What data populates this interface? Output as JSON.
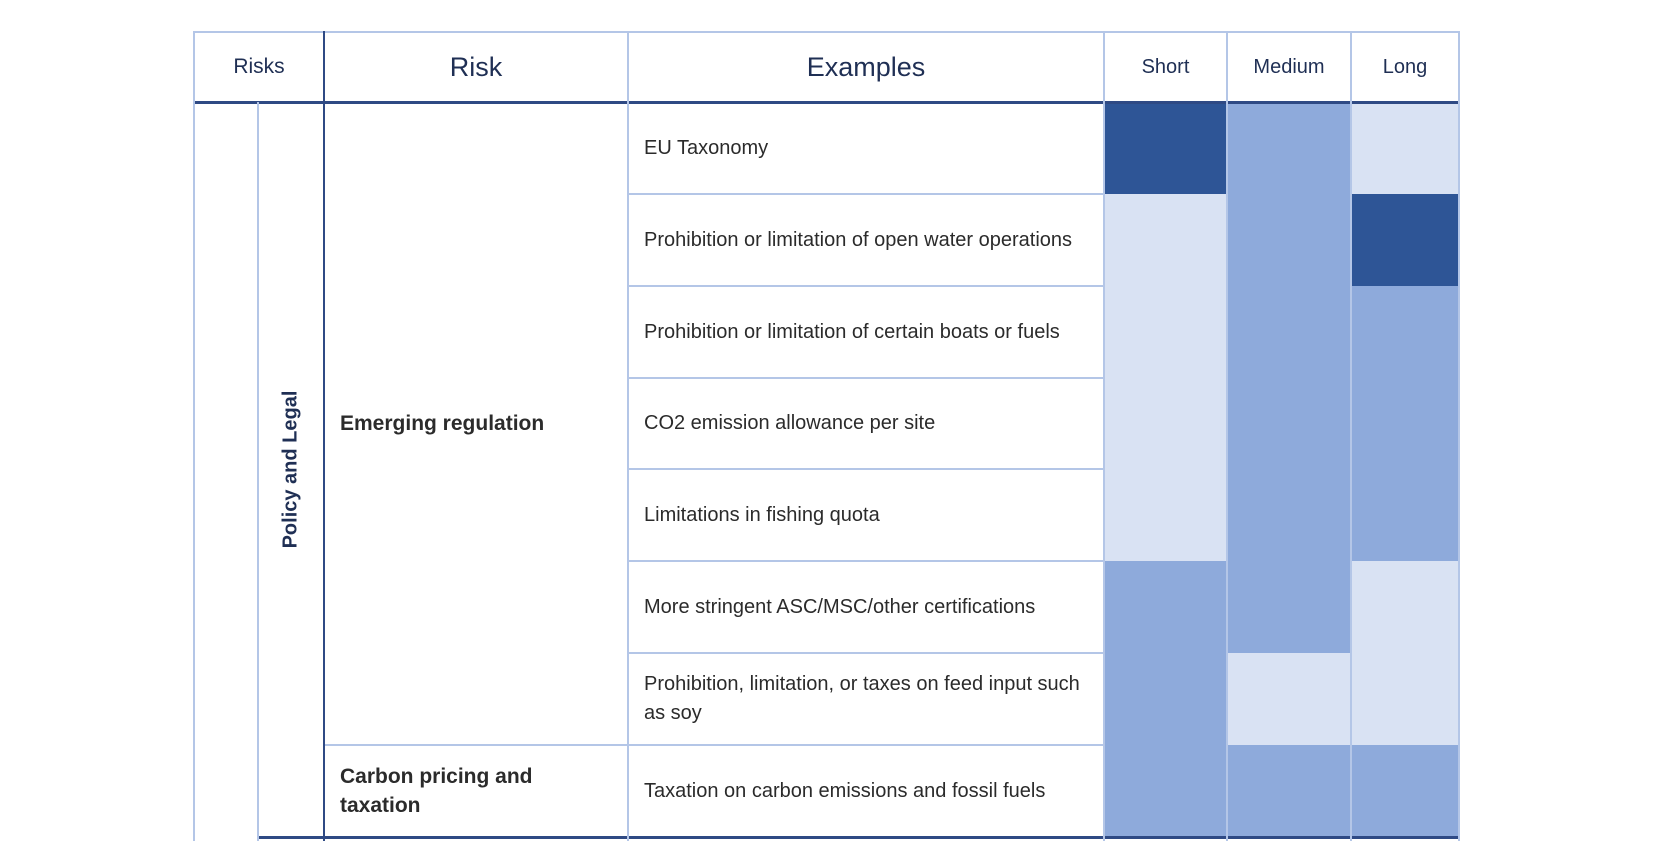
{
  "header": {
    "risks": "Risks",
    "risk": "Risk",
    "examples": "Examples",
    "short": "Short",
    "medium": "Medium",
    "long": "Long"
  },
  "category": "Policy and Legal",
  "groups": [
    {
      "risk": "Emerging regulation",
      "row_span": 7
    },
    {
      "risk": "Carbon pricing and taxation",
      "row_span": 1
    }
  ],
  "colors": {
    "high": "#2e5596",
    "medium": "#8eaadb",
    "low": "#d9e2f3"
  },
  "rows": [
    {
      "example": "EU Taxonomy",
      "short": "high",
      "medium": "medium",
      "long": "low"
    },
    {
      "example": "Prohibition or limitation of open water operations",
      "short": "low",
      "medium": "medium",
      "long": "high"
    },
    {
      "example": "Prohibition or limitation of certain boats or fuels",
      "short": "low",
      "medium": "medium",
      "long": "medium"
    },
    {
      "example": "CO2 emission allowance per site",
      "short": "low",
      "medium": "medium",
      "long": "medium"
    },
    {
      "example": "Limitations in fishing quota",
      "short": "low",
      "medium": "medium",
      "long": "medium"
    },
    {
      "example": "More stringent ASC/MSC/other certifications",
      "short": "medium",
      "medium": "medium",
      "long": "low"
    },
    {
      "example": "Prohibition, limitation, or taxes on feed input such as soy",
      "short": "medium",
      "medium": "low",
      "long": "low"
    },
    {
      "example": "Taxation on carbon emissions and fossil fuels",
      "short": "medium",
      "medium": "medium",
      "long": "medium"
    }
  ]
}
